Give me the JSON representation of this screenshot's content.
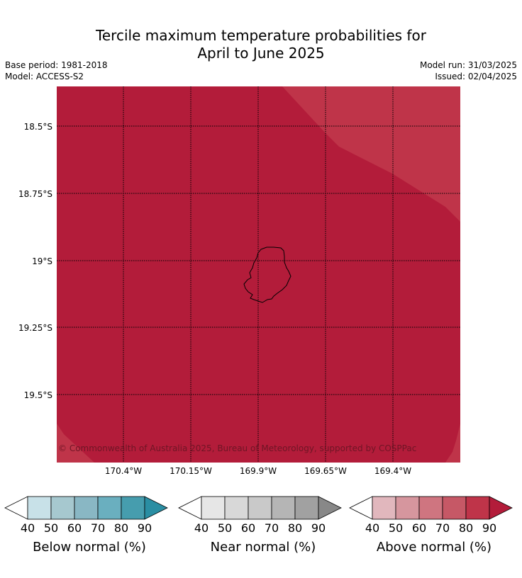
{
  "title_line1": "Tercile maximum temperature probabilities for",
  "title_line2": "April to June 2025",
  "base_period": "Base period: 1981-2018",
  "model": "Model: ACCESS-S2",
  "model_run": "Model run: 31/03/2025",
  "issued": "Issued: 02/04/2025",
  "copyright": "© Commonwealth of Australia 2025, Bureau of Meteorology, supported by COSPPac",
  "map": {
    "lat_labels": [
      "18.5°S",
      "18.75°S",
      "19°S",
      "19.25°S",
      "19.5°S"
    ],
    "lon_labels": [
      "170.4°W",
      "170.15°W",
      "169.9°W",
      "169.65°W",
      "169.4°W"
    ],
    "fill_90": "#b31c3a",
    "fill_80": "#bf3449"
  },
  "colorbars": [
    {
      "label": "Below normal (%)",
      "ticks": [
        "40",
        "50",
        "60",
        "70",
        "80",
        "90"
      ],
      "colors": [
        "#ffffff",
        "#c8e1e8",
        "#a6c8cf",
        "#89b7c4",
        "#6aafbf",
        "#469dae",
        "#2a8ea3"
      ]
    },
    {
      "label": "Near normal (%)",
      "ticks": [
        "40",
        "50",
        "60",
        "70",
        "80",
        "90"
      ],
      "colors": [
        "#ffffff",
        "#e6e6e6",
        "#d8d8d8",
        "#c9c9c9",
        "#b5b5b5",
        "#a1a1a1",
        "#888888"
      ]
    },
    {
      "label": "Above normal (%)",
      "ticks": [
        "40",
        "50",
        "60",
        "70",
        "80",
        "90"
      ],
      "colors": [
        "#ffffff",
        "#e1b7bd",
        "#d6969e",
        "#cf7580",
        "#c65866",
        "#bf3449",
        "#b31c3a"
      ]
    }
  ]
}
